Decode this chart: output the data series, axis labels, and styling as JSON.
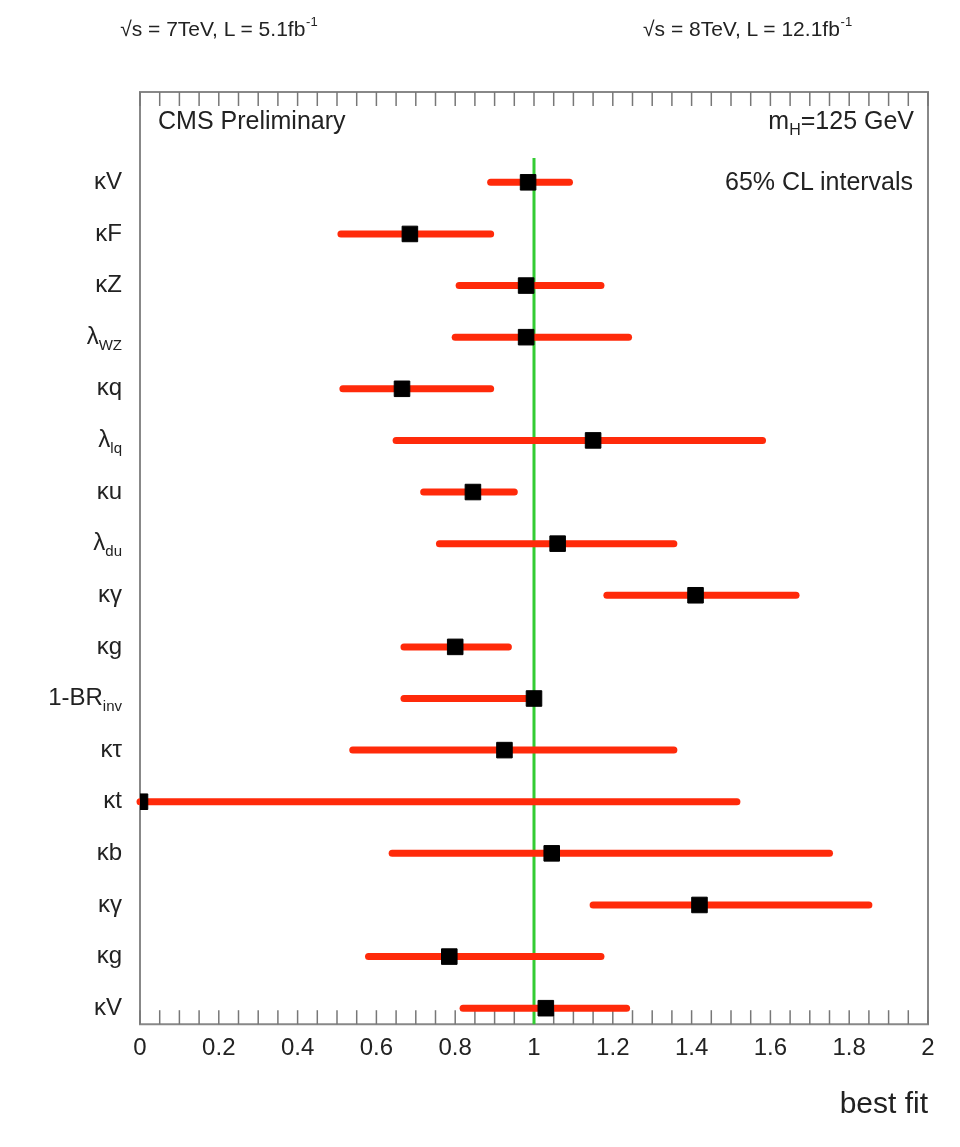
{
  "chart_data": {
    "type": "scatter",
    "orientation": "horizontal",
    "xlabel": "best fit",
    "annotations": [
      "√s = 7TeV, L = 5.1fb$^{-1}$",
      "√s = 8TeV, L = 12.1fb$^{-1}$",
      "CMS Preliminary",
      "m$_{H}$=125 GeV",
      "65% CL intervals"
    ],
    "categories": [
      "κV",
      "κF",
      "κZ",
      "λ$_{WZ}$",
      "κq",
      "λ$_{lq}$",
      "κu",
      "λ$_{du}$",
      "κγ",
      "κg",
      "1-BR$_{inv}$",
      "κτ",
      "κt",
      "κb",
      "κγ",
      "κg",
      "κV"
    ],
    "series": [
      {
        "color": "#000000",
        "values": [
          0.985,
          0.685,
          0.98,
          0.98,
          0.665,
          1.15,
          0.845,
          1.06,
          1.41,
          0.8,
          1.0,
          0.925,
          0,
          1.045,
          1.42,
          0.785,
          1.03
        ],
        "errors": [
          [
            0.89,
            1.09
          ],
          [
            0.51,
            0.89
          ],
          [
            0.81,
            1.17
          ],
          [
            0.8,
            1.24
          ],
          [
            0.515,
            0.89
          ],
          [
            0.65,
            1.58
          ],
          [
            0.72,
            0.95
          ],
          [
            0.76,
            1.355
          ],
          [
            1.185,
            1.665
          ],
          [
            0.67,
            0.935
          ],
          [
            0.67,
            1.0
          ],
          [
            0.54,
            1.355
          ],
          [
            0,
            1.515
          ],
          [
            0.64,
            1.75
          ],
          [
            1.15,
            1.85
          ],
          [
            0.58,
            1.17
          ],
          [
            0.82,
            1.235
          ]
        ]
      }
    ],
    "xlim": [
      0,
      2
    ],
    "xticks": [
      0,
      {
        "value": 0.05,
        "label": null
      },
      {
        "value": 0.1,
        "label": null
      },
      {
        "value": 0.15,
        "label": null
      },
      0.2,
      {
        "value": 0.25,
        "label": null
      },
      {
        "value": 0.3,
        "label": null
      },
      {
        "value": 0.35,
        "label": null
      },
      0.4,
      {
        "value": 0.45,
        "label": null
      },
      {
        "value": 0.5,
        "label": null
      },
      {
        "value": 0.55,
        "label": null
      },
      0.6,
      {
        "value": 0.65,
        "label": null
      },
      {
        "value": 0.7,
        "label": null
      },
      {
        "value": 0.75,
        "label": null
      },
      0.8,
      {
        "value": 0.85,
        "label": null
      },
      {
        "value": 0.9,
        "label": null
      },
      {
        "value": 0.95,
        "label": null
      },
      1,
      {
        "value": 1.05,
        "label": null
      },
      {
        "value": 1.1,
        "label": null
      },
      {
        "value": 1.15,
        "label": null
      },
      1.2,
      {
        "value": 1.25,
        "label": null
      },
      {
        "value": 1.3,
        "label": null
      },
      {
        "value": 1.35,
        "label": null
      },
      1.4,
      {
        "value": 1.45,
        "label": null
      },
      {
        "value": 1.5,
        "label": null
      },
      {
        "value": 1.55,
        "label": null
      },
      1.6,
      {
        "value": 1.65,
        "label": null
      },
      {
        "value": 1.7,
        "label": null
      },
      {
        "value": 1.75,
        "label": null
      },
      1.8,
      {
        "value": 1.85,
        "label": null
      },
      {
        "value": 1.9,
        "label": null
      },
      {
        "value": 1.95,
        "label": null
      },
      2
    ],
    "ref_lines": [
      {
        "axis": "x",
        "value": 1,
        "color": "#33cc33"
      }
    ],
    "marker": "square",
    "grid": false,
    "legend": false
  }
}
